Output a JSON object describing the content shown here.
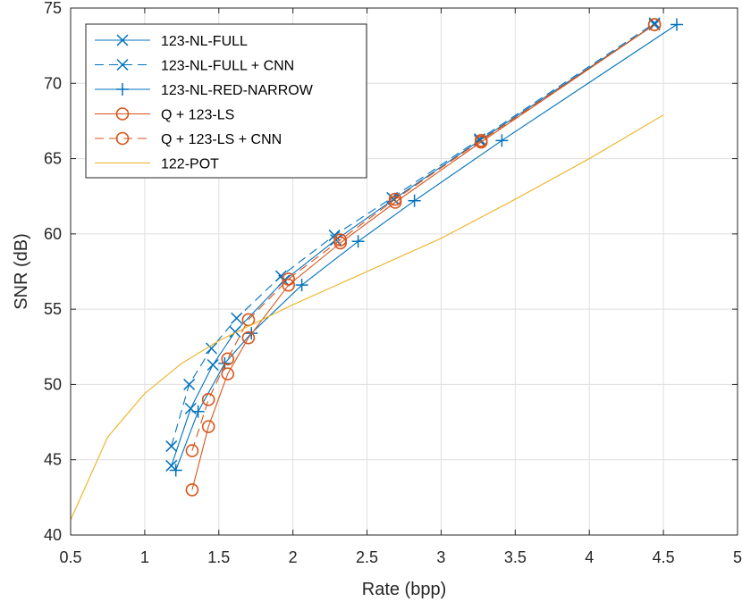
{
  "chart_data": {
    "type": "line",
    "xlabel": "Rate (bpp)",
    "ylabel": "SNR (dB)",
    "xlim": [
      0.5,
      5
    ],
    "ylim": [
      40,
      75
    ],
    "xticks": [
      0.5,
      1,
      1.5,
      2,
      2.5,
      3,
      3.5,
      4,
      4.5,
      5
    ],
    "yticks": [
      40,
      45,
      50,
      55,
      60,
      65,
      70,
      75
    ],
    "xtick_labels": [
      "0.5",
      "1",
      "1.5",
      "2",
      "2.5",
      "3",
      "3.5",
      "4",
      "4.5",
      "5"
    ],
    "ytick_labels": [
      "40",
      "45",
      "50",
      "55",
      "60",
      "65",
      "70",
      "75"
    ],
    "grid": true,
    "legend_position": "top-left",
    "colors": {
      "blue": "#0072BD",
      "orange": "#D95319",
      "yellow": "#EDB120"
    },
    "series": [
      {
        "name": "123-NL-FULL",
        "color": "#0072BD",
        "line": "solid",
        "marker": "x",
        "points": [
          [
            1.18,
            44.6
          ],
          [
            1.31,
            48.4
          ],
          [
            1.46,
            51.3
          ],
          [
            1.61,
            53.5
          ],
          [
            1.94,
            56.9
          ],
          [
            2.29,
            59.6
          ],
          [
            2.68,
            62.3
          ],
          [
            3.26,
            66.2
          ],
          [
            4.44,
            73.9
          ]
        ]
      },
      {
        "name": "123-NL-FULL + CNN",
        "color": "#0072BD",
        "line": "dashed",
        "marker": "x",
        "points": [
          [
            1.18,
            45.9
          ],
          [
            1.3,
            50.0
          ],
          [
            1.45,
            52.4
          ],
          [
            1.62,
            54.4
          ],
          [
            1.92,
            57.2
          ],
          [
            2.28,
            59.9
          ],
          [
            2.67,
            62.4
          ],
          [
            3.26,
            66.3
          ],
          [
            4.44,
            74.0
          ]
        ]
      },
      {
        "name": "123-NL-RED-NARROW",
        "color": "#0072BD",
        "line": "solid",
        "marker": "+",
        "points": [
          [
            1.21,
            44.3
          ],
          [
            1.36,
            48.2
          ],
          [
            1.54,
            51.4
          ],
          [
            1.72,
            53.4
          ],
          [
            2.06,
            56.6
          ],
          [
            2.44,
            59.5
          ],
          [
            2.82,
            62.2
          ],
          [
            3.41,
            66.2
          ],
          [
            4.59,
            73.9
          ]
        ]
      },
      {
        "name": "Q + 123-LS",
        "color": "#D95319",
        "line": "solid",
        "marker": "o",
        "points": [
          [
            1.32,
            43.0
          ],
          [
            1.43,
            47.2
          ],
          [
            1.56,
            50.7
          ],
          [
            1.7,
            53.1
          ],
          [
            1.97,
            56.6
          ],
          [
            2.32,
            59.4
          ],
          [
            2.69,
            62.1
          ],
          [
            3.27,
            66.1
          ],
          [
            4.44,
            73.9
          ]
        ]
      },
      {
        "name": "Q + 123-LS + CNN",
        "color": "#D95319",
        "line": "dashed",
        "marker": "o",
        "points": [
          [
            1.32,
            45.6
          ],
          [
            1.43,
            49.0
          ],
          [
            1.56,
            51.7
          ],
          [
            1.7,
            54.3
          ],
          [
            1.97,
            57.0
          ],
          [
            2.32,
            59.6
          ],
          [
            2.69,
            62.3
          ],
          [
            3.27,
            66.2
          ],
          [
            4.44,
            73.9
          ]
        ]
      },
      {
        "name": "122-POT",
        "color": "#EDB120",
        "line": "solid",
        "marker": "none",
        "points": [
          [
            0.5,
            41.0
          ],
          [
            0.75,
            46.5
          ],
          [
            1.0,
            49.4
          ],
          [
            1.25,
            51.4
          ],
          [
            1.5,
            52.9
          ],
          [
            2.0,
            55.3
          ],
          [
            2.5,
            57.5
          ],
          [
            3.0,
            59.7
          ],
          [
            3.5,
            62.3
          ],
          [
            4.0,
            65.0
          ],
          [
            4.5,
            67.9
          ]
        ]
      }
    ]
  }
}
